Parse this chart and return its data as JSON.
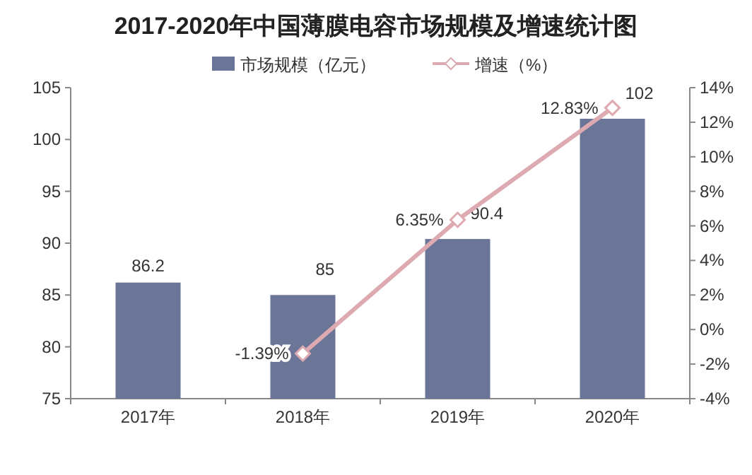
{
  "chart_data": {
    "type": "bar",
    "title": "2017-2020年中国薄膜电容市场规模及增速统计图",
    "categories": [
      "2017年",
      "2018年",
      "2019年",
      "2020年"
    ],
    "series": [
      {
        "name": "市场规模（亿元）",
        "color": "#6b7597",
        "values": [
          86.2,
          85,
          90.4,
          102
        ],
        "value_labels": [
          "86.2",
          "85",
          "90.4",
          "102"
        ]
      },
      {
        "name": "增速（%）",
        "type": "line",
        "axis": "y2",
        "color": "#dcaab0",
        "marker": "diamond",
        "line_style": "solid",
        "values": [
          null,
          -1.39,
          6.35,
          12.83
        ],
        "value_labels": [
          null,
          "-1.39%",
          "6.35%",
          "12.83%"
        ]
      }
    ],
    "ylim": [
      75,
      105
    ],
    "yticks": [
      75,
      80,
      85,
      90,
      95,
      100,
      105
    ],
    "y2lim": [
      -4,
      14
    ],
    "y2ticks": [
      {
        "value": -4,
        "label": "-4%"
      },
      {
        "value": -2,
        "label": "-2%"
      },
      {
        "value": 0,
        "label": "0%"
      },
      {
        "value": 2,
        "label": "2%"
      },
      {
        "value": 4,
        "label": "4%"
      },
      {
        "value": 6,
        "label": "6%"
      },
      {
        "value": 8,
        "label": "8%"
      },
      {
        "value": 10,
        "label": "10%"
      },
      {
        "value": 12,
        "label": "12%"
      },
      {
        "value": 14,
        "label": "14%"
      }
    ],
    "legend": "top",
    "grid": false
  }
}
